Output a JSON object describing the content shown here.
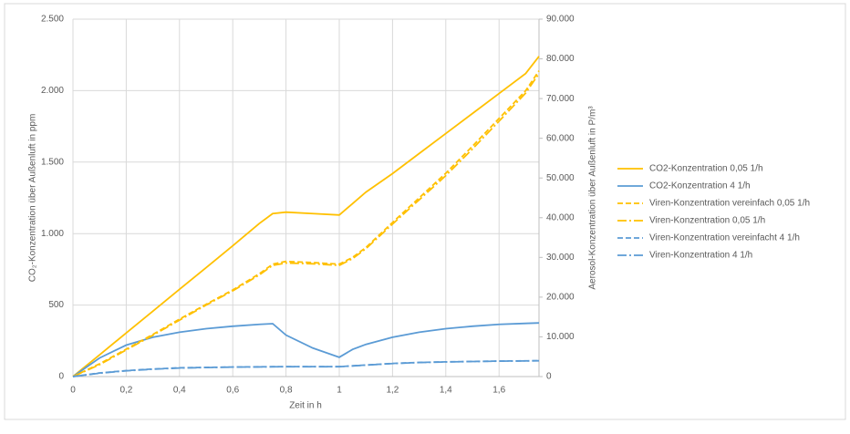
{
  "chart_data": {
    "type": "line",
    "x_label": "Zeit in h",
    "y_label": "CO₂-Konzentration über Außenluft in ppm",
    "y2_label": "Aerosol-Konzentration über Außenluft in P/m³",
    "x": [
      0,
      0.1,
      0.2,
      0.3,
      0.4,
      0.5,
      0.6,
      0.7,
      0.75,
      0.8,
      0.9,
      1.0,
      1.05,
      1.1,
      1.2,
      1.3,
      1.4,
      1.5,
      1.6,
      1.7,
      1.75
    ],
    "xlim": [
      0,
      1.75
    ],
    "xticks": [
      0,
      {
        "value": 0.2,
        "label": "0,2"
      },
      {
        "value": 0.4,
        "label": "0,4"
      },
      {
        "value": 0.6,
        "label": "0,6"
      },
      {
        "value": 0.8,
        "label": "0,8"
      },
      1,
      {
        "value": 1.2,
        "label": "1,2"
      },
      {
        "value": 1.4,
        "label": "1,4"
      },
      {
        "value": 1.6,
        "label": "1,6"
      }
    ],
    "ylim": [
      0,
      2500
    ],
    "yticks": [
      0,
      500,
      {
        "value": 1000,
        "label": "1.000"
      },
      {
        "value": 1500,
        "label": "1.500"
      },
      {
        "value": 2000,
        "label": "2.000"
      },
      {
        "value": 2500,
        "label": "2.500"
      }
    ],
    "y2lim": [
      0,
      90000
    ],
    "y2ticks": [
      0,
      {
        "value": 10000,
        "label": "10.000"
      },
      {
        "value": 20000,
        "label": "20.000"
      },
      {
        "value": 30000,
        "label": "30.000"
      },
      {
        "value": 40000,
        "label": "40.000"
      },
      {
        "value": 50000,
        "label": "50.000"
      },
      {
        "value": 60000,
        "label": "60.000"
      },
      {
        "value": 70000,
        "label": "70.000"
      },
      {
        "value": 80000,
        "label": "80.000"
      },
      {
        "value": 90000,
        "label": "90.000"
      }
    ],
    "grid": true,
    "legend": "right",
    "series": [
      {
        "name": "CO2-Konzentration 0,05 1/h",
        "color": "#ffc000",
        "dash": "solid",
        "values": [
          0,
          152,
          305,
          457,
          610,
          762,
          915,
          1071,
          1140,
          1150,
          1140,
          1130,
          1210,
          1290,
          1420,
          1560,
          1700,
          1840,
          1980,
          2120,
          2240
        ]
      },
      {
        "name": "CO2-Konzentration 4 1/h",
        "color": "#5b9bd5",
        "dash": "solid",
        "values": [
          0,
          130,
          220,
          275,
          310,
          335,
          352,
          365,
          370,
          290,
          200,
          135,
          190,
          225,
          275,
          310,
          335,
          352,
          365,
          372,
          375
        ]
      },
      {
        "name": "Viren-Konzentration vereinfach 0,05 1/h",
        "color": "#ffc000",
        "dash": "dash",
        "axis": "y2",
        "values": [
          0,
          3200,
          6900,
          10600,
          14460,
          18200,
          21800,
          25900,
          28300,
          29000,
          28700,
          28300,
          30000,
          32500,
          38800,
          45000,
          51200,
          58000,
          65000,
          72000,
          77000
        ]
      },
      {
        "name": "Viren-Konzentration 0,05 1/h",
        "color": "#ffc000",
        "dash": "dashdot",
        "axis": "y2",
        "values": [
          0,
          3000,
          6700,
          10400,
          14200,
          18000,
          21600,
          25600,
          28000,
          28600,
          28400,
          28000,
          29700,
          32200,
          38400,
          44500,
          50600,
          57300,
          64300,
          71400,
          76300
        ]
      },
      {
        "name": "Viren-Konzentration vereinfacht 4 1/h",
        "color": "#5b9bd5",
        "dash": "dash",
        "axis": "y2",
        "values": [
          0,
          900,
          1500,
          1900,
          2200,
          2300,
          2400,
          2450,
          2480,
          2500,
          2500,
          2500,
          2700,
          2900,
          3300,
          3550,
          3700,
          3800,
          3900,
          3950,
          4000
        ]
      },
      {
        "name": "Viren-Konzentration 4 1/h",
        "color": "#5b9bd5",
        "dash": "dashdot",
        "axis": "y2",
        "values": [
          0,
          850,
          1450,
          1850,
          2150,
          2270,
          2380,
          2430,
          2460,
          2480,
          2480,
          2480,
          2680,
          2880,
          3280,
          3530,
          3680,
          3780,
          3880,
          3930,
          3980
        ]
      }
    ]
  }
}
